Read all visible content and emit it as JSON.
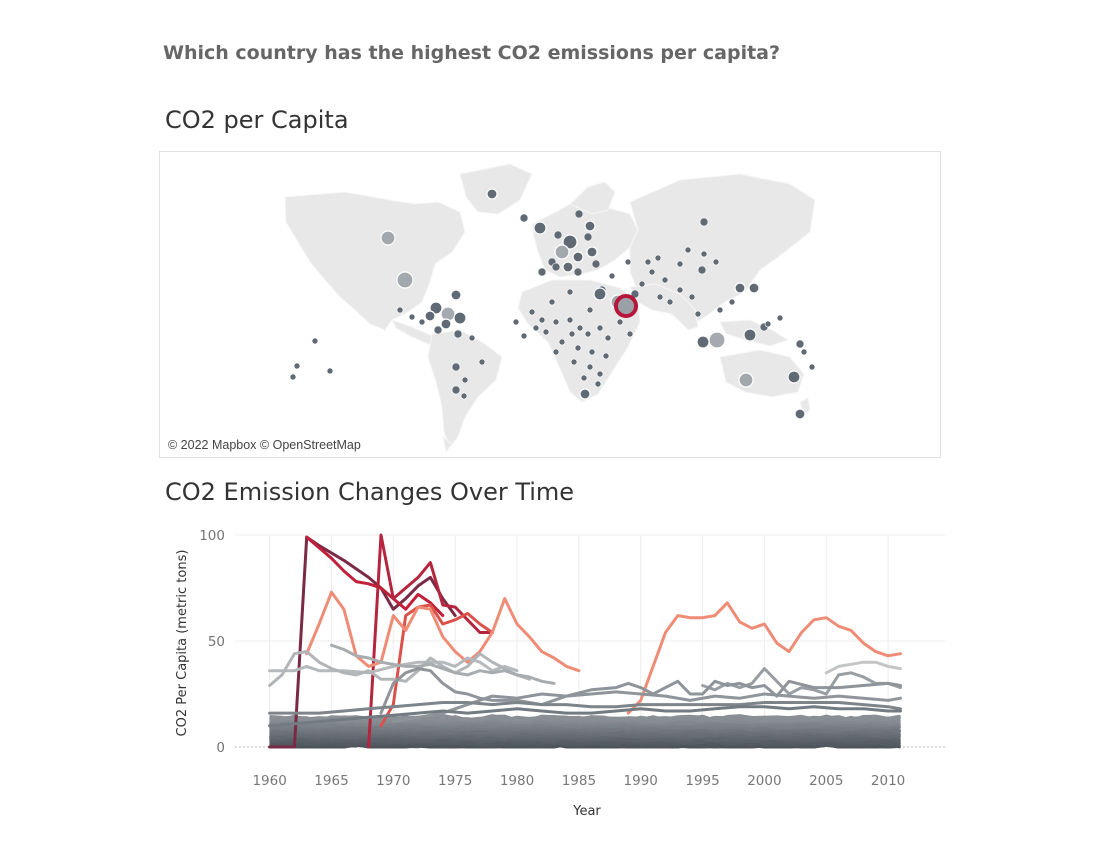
{
  "dashboard": {
    "question": "Which country has the highest CO2 emissions per capita?",
    "map_title": "CO2 per Capita",
    "line_title": "CO2 Emission Changes Over Time"
  },
  "map": {
    "attribution": "© 2022 Mapbox © OpenStreetMap",
    "colors": {
      "land": "#e8e8e8",
      "dot": "#5f6a75",
      "dot_light": "#9aa1a7",
      "highlight": "#b6173b"
    }
  },
  "chart_data": {
    "type": "line",
    "title": "CO2 Emission Changes Over Time",
    "xlabel": "Year",
    "ylabel": "CO2 Per Capita (metric tons)",
    "xlim": [
      1960,
      2011
    ],
    "ylim": [
      0,
      100
    ],
    "x_ticks": [
      1960,
      1965,
      1970,
      1975,
      1980,
      1985,
      1990,
      1995,
      2000,
      2005,
      2010
    ],
    "y_ticks": [
      0,
      50,
      100
    ],
    "grid": true,
    "series": [
      {
        "color": "#7a2a44",
        "points": [
          [
            1960,
            0
          ],
          [
            1962,
            0
          ],
          [
            1963,
            99
          ],
          [
            1964,
            95
          ],
          [
            1966,
            88
          ],
          [
            1968,
            80
          ],
          [
            1969,
            75
          ],
          [
            1970,
            65
          ],
          [
            1971,
            70
          ],
          [
            1972,
            76
          ],
          [
            1973,
            80
          ],
          [
            1974,
            70
          ],
          [
            1975,
            62
          ]
        ]
      },
      {
        "color": "#c0203a",
        "points": [
          [
            1963,
            99
          ],
          [
            1964,
            94
          ],
          [
            1965,
            89
          ],
          [
            1966,
            83
          ],
          [
            1967,
            78
          ],
          [
            1968,
            77
          ],
          [
            1969,
            75
          ],
          [
            1970,
            70
          ],
          [
            1971,
            65
          ],
          [
            1972,
            72
          ],
          [
            1973,
            68
          ],
          [
            1974,
            62
          ]
        ]
      },
      {
        "color": "#b5253d",
        "points": [
          [
            1968,
            0
          ],
          [
            1969,
            100
          ],
          [
            1970,
            70
          ],
          [
            1971,
            75
          ],
          [
            1972,
            80
          ],
          [
            1973,
            87
          ],
          [
            1974,
            67
          ],
          [
            1975,
            66
          ],
          [
            1976,
            60
          ],
          [
            1977,
            54
          ],
          [
            1978,
            54
          ]
        ]
      },
      {
        "color": "#d9534a",
        "points": [
          [
            1969,
            10
          ],
          [
            1970,
            20
          ],
          [
            1971,
            62
          ],
          [
            1972,
            66
          ],
          [
            1973,
            67
          ],
          [
            1974,
            58
          ],
          [
            1975,
            60
          ],
          [
            1976,
            63
          ],
          [
            1977,
            58
          ],
          [
            1978,
            54
          ]
        ]
      },
      {
        "color": "#ef8c76",
        "points": [
          [
            1963,
            44
          ],
          [
            1964,
            58
          ],
          [
            1965,
            73
          ],
          [
            1966,
            65
          ],
          [
            1967,
            43
          ],
          [
            1968,
            38
          ],
          [
            1969,
            40
          ],
          [
            1970,
            62
          ],
          [
            1971,
            55
          ],
          [
            1972,
            66
          ],
          [
            1973,
            65
          ],
          [
            1974,
            52
          ],
          [
            1975,
            45
          ],
          [
            1976,
            40
          ],
          [
            1977,
            45
          ],
          [
            1978,
            54
          ],
          [
            1979,
            70
          ],
          [
            1980,
            58
          ],
          [
            1981,
            52
          ],
          [
            1982,
            45
          ],
          [
            1983,
            42
          ],
          [
            1984,
            38
          ],
          [
            1985,
            36
          ]
        ]
      },
      {
        "color": "#ee8c76",
        "points": [
          [
            1989,
            16
          ],
          [
            1990,
            22
          ],
          [
            1991,
            38
          ],
          [
            1992,
            54
          ],
          [
            1993,
            62
          ],
          [
            1994,
            61
          ],
          [
            1995,
            61
          ],
          [
            1996,
            62
          ],
          [
            1997,
            68
          ],
          [
            1998,
            59
          ],
          [
            1999,
            56
          ],
          [
            2000,
            58
          ],
          [
            2001,
            49
          ],
          [
            2002,
            45
          ],
          [
            2003,
            54
          ],
          [
            2004,
            60
          ],
          [
            2005,
            61
          ],
          [
            2006,
            57
          ],
          [
            2007,
            55
          ],
          [
            2008,
            49
          ],
          [
            2009,
            45
          ],
          [
            2010,
            43
          ],
          [
            2011,
            44
          ]
        ]
      },
      {
        "color": "#b6b9bb",
        "points": [
          [
            1960,
            36
          ],
          [
            1962,
            36
          ],
          [
            1963,
            38
          ],
          [
            1964,
            36
          ],
          [
            1966,
            36
          ],
          [
            1968,
            35
          ],
          [
            1970,
            38
          ],
          [
            1972,
            40
          ],
          [
            1974,
            40
          ],
          [
            1975,
            38
          ],
          [
            1976,
            42
          ],
          [
            1977,
            40
          ],
          [
            1978,
            36
          ],
          [
            1979,
            38
          ],
          [
            1980,
            36
          ]
        ]
      },
      {
        "color": "#b2b5b7",
        "points": [
          [
            1960,
            29
          ],
          [
            1961,
            34
          ],
          [
            1962,
            44
          ],
          [
            1963,
            45
          ],
          [
            1964,
            40
          ],
          [
            1965,
            37
          ],
          [
            1966,
            35
          ],
          [
            1967,
            34
          ],
          [
            1968,
            36
          ],
          [
            1969,
            32
          ],
          [
            1970,
            32
          ],
          [
            1971,
            31
          ],
          [
            1972,
            36
          ],
          [
            1973,
            42
          ],
          [
            1974,
            38
          ],
          [
            1975,
            35
          ],
          [
            1976,
            38
          ],
          [
            1977,
            44
          ],
          [
            1978,
            40
          ],
          [
            1979,
            37
          ],
          [
            1980,
            34
          ],
          [
            1981,
            32
          ]
        ]
      },
      {
        "color": "#a8acaf",
        "points": [
          [
            1965,
            48
          ],
          [
            1966,
            46
          ],
          [
            1967,
            43
          ],
          [
            1968,
            42
          ],
          [
            1969,
            40
          ],
          [
            1970,
            39
          ],
          [
            1971,
            38
          ],
          [
            1972,
            38
          ],
          [
            1973,
            39
          ],
          [
            1974,
            37
          ],
          [
            1975,
            35
          ],
          [
            1976,
            34
          ],
          [
            1977,
            36
          ],
          [
            1978,
            35
          ],
          [
            1979,
            36
          ],
          [
            1980,
            34
          ],
          [
            1981,
            33
          ],
          [
            1982,
            31
          ],
          [
            1983,
            30
          ]
        ]
      },
      {
        "color": "#c3c5c6",
        "points": [
          [
            2005,
            35
          ],
          [
            2006,
            38
          ],
          [
            2007,
            39
          ],
          [
            2008,
            40
          ],
          [
            2009,
            40
          ],
          [
            2010,
            38
          ],
          [
            2011,
            37
          ]
        ]
      },
      {
        "color": "#999ea2",
        "points": [
          [
            1995,
            29
          ],
          [
            1996,
            27
          ],
          [
            1997,
            30
          ],
          [
            1998,
            28
          ],
          [
            1999,
            30
          ],
          [
            2000,
            37
          ],
          [
            2001,
            31
          ],
          [
            2002,
            25
          ],
          [
            2003,
            28
          ],
          [
            2004,
            27
          ],
          [
            2005,
            25
          ],
          [
            2006,
            34
          ],
          [
            2007,
            35
          ],
          [
            2008,
            33
          ],
          [
            2009,
            30
          ],
          [
            2010,
            30
          ],
          [
            2011,
            28
          ]
        ]
      },
      {
        "color": "#8f959a",
        "points": [
          [
            1969,
            16
          ],
          [
            1970,
            30
          ],
          [
            1971,
            35
          ],
          [
            1972,
            37
          ],
          [
            1973,
            36
          ],
          [
            1974,
            30
          ],
          [
            1975,
            26
          ],
          [
            1976,
            25
          ],
          [
            1977,
            23
          ],
          [
            1978,
            22
          ],
          [
            1980,
            22
          ],
          [
            1982,
            20
          ],
          [
            1984,
            24
          ],
          [
            1986,
            25
          ],
          [
            1988,
            26
          ],
          [
            1990,
            25
          ],
          [
            1992,
            24
          ],
          [
            1994,
            22
          ],
          [
            1996,
            24
          ],
          [
            1998,
            23
          ],
          [
            2000,
            25
          ],
          [
            2002,
            24
          ],
          [
            2004,
            23
          ],
          [
            2006,
            24
          ],
          [
            2008,
            23
          ],
          [
            2010,
            22
          ],
          [
            2011,
            23
          ]
        ]
      },
      {
        "color": "#8e9499",
        "points": [
          [
            1970,
            12
          ],
          [
            1972,
            14
          ],
          [
            1974,
            16
          ],
          [
            1976,
            20
          ],
          [
            1978,
            24
          ],
          [
            1980,
            23
          ],
          [
            1982,
            25
          ],
          [
            1984,
            24
          ],
          [
            1986,
            27
          ],
          [
            1988,
            28
          ],
          [
            1989,
            30
          ],
          [
            1990,
            28
          ],
          [
            1991,
            25
          ],
          [
            1992,
            28
          ],
          [
            1993,
            31
          ],
          [
            1994,
            25
          ],
          [
            1995,
            25
          ],
          [
            1996,
            31
          ],
          [
            1997,
            29
          ],
          [
            1998,
            30
          ],
          [
            1999,
            28
          ],
          [
            2000,
            29
          ],
          [
            2001,
            24
          ],
          [
            2002,
            31
          ],
          [
            2004,
            28
          ],
          [
            2006,
            28
          ],
          [
            2008,
            29
          ],
          [
            2010,
            30
          ],
          [
            2011,
            29
          ]
        ]
      },
      {
        "color": "#7d848a",
        "points": [
          [
            1960,
            16
          ],
          [
            1962,
            16
          ],
          [
            1964,
            16
          ],
          [
            1966,
            17
          ],
          [
            1968,
            18
          ],
          [
            1970,
            19
          ],
          [
            1972,
            20
          ],
          [
            1974,
            21
          ],
          [
            1976,
            21
          ],
          [
            1978,
            20
          ],
          [
            1980,
            21
          ],
          [
            1982,
            20
          ],
          [
            1984,
            20
          ],
          [
            1986,
            19
          ],
          [
            1988,
            19
          ],
          [
            1990,
            20
          ],
          [
            1992,
            20
          ],
          [
            1994,
            20
          ],
          [
            1996,
            20
          ],
          [
            1998,
            20
          ],
          [
            2000,
            21
          ],
          [
            2002,
            21
          ],
          [
            2004,
            21
          ],
          [
            2006,
            21
          ],
          [
            2008,
            20
          ],
          [
            2010,
            19
          ],
          [
            2011,
            18
          ]
        ]
      },
      {
        "color": "#737b82",
        "points": [
          [
            1960,
            10
          ],
          [
            1962,
            11
          ],
          [
            1964,
            12
          ],
          [
            1966,
            13
          ],
          [
            1968,
            14
          ],
          [
            1970,
            15
          ],
          [
            1972,
            16
          ],
          [
            1974,
            17
          ],
          [
            1976,
            16
          ],
          [
            1978,
            17
          ],
          [
            1980,
            18
          ],
          [
            1982,
            17
          ],
          [
            1984,
            16
          ],
          [
            1986,
            16
          ],
          [
            1988,
            17
          ],
          [
            1990,
            18
          ],
          [
            1992,
            17
          ],
          [
            1994,
            17
          ],
          [
            1996,
            18
          ],
          [
            1998,
            19
          ],
          [
            2000,
            19
          ],
          [
            2002,
            18
          ],
          [
            2004,
            19
          ],
          [
            2006,
            18
          ],
          [
            2008,
            18
          ],
          [
            2010,
            17
          ],
          [
            2011,
            17
          ]
        ]
      }
    ],
    "background_band": {
      "count": 60,
      "min": 0,
      "max": 14,
      "color_top": "#8a9096",
      "color_bottom": "#4a5058"
    }
  }
}
